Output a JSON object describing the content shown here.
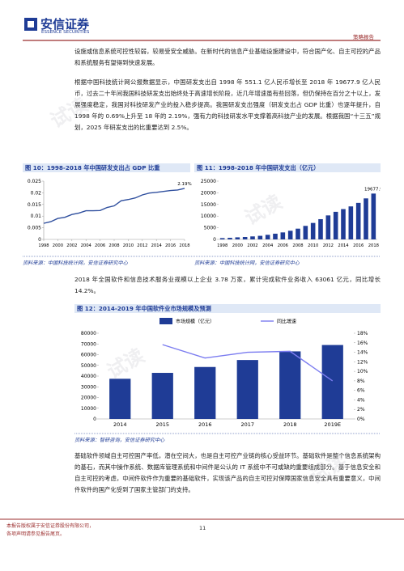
{
  "header": {
    "company": "安信证券",
    "company_en": "ESSENCE SECURITIES",
    "report_type": "策略报告"
  },
  "paragraphs": [
    "设施或信息系统可控性较弱，较易受安全威胁。在新时代的信息产业基础设施建设中，符合国产化、自主可控的产品和系统服务有望得到快速发展。",
    "根据中国科技统计网公报数据显示，中国研发支出自 1998 年 551.1 亿人民币增长至 2018 年 19677.9 亿人民币，过去二十年间我国科技研发支出始终处于高速增长阶段，近几年增速虽有些回落，但仍保持在百分之十以上，发展强度稳定，我国对科技研发产业的投入稳步提高。我国研发支出强度（研发支出占 GDP 比重）也逐年提升，自 1998 年的 0.69%上升至 18 年的 2.19%，强有力的科技研发水平支撑着高科技产业的发展。根据我国“十三五”规划，2025 年研发支出的比重要达到 2.5%。",
    "2018 年全国软件和信息技术服务业规模以上企业 3.78 万家，累计完成软件业务收入 63061 亿元，同比增长 14.2%。",
    "基础软件领域自主可控国产率低，潜在空间大，也是自主可控产业链的核心受益环节。基础软件是整个信息系统架构的基石，而其中操作系统、数据库管理系统和中间件是公认的 IT 系统中不可或缺的重要组成部分。基于信息安全和自主可控的考虑，中间件软件作为重要的基础软件，实现该产品的自主可控对保障国家信息安全具有重要意义，中间件软件的国产化受到了国家主管部门的支持。"
  ],
  "chart_data": [
    {
      "type": "line",
      "title": "图 10：1998-2018 年中国研发支出占 GDP 比重",
      "source": "资料来源：中国科技统计网，安信证券研究中心",
      "x": [
        1998,
        1999,
        2000,
        2001,
        2002,
        2003,
        2004,
        2005,
        2006,
        2007,
        2008,
        2009,
        2010,
        2011,
        2012,
        2013,
        2014,
        2015,
        2016,
        2017,
        2018
      ],
      "values": [
        0.0069,
        0.0076,
        0.009,
        0.0095,
        0.0107,
        0.0113,
        0.0123,
        0.0123,
        0.0124,
        0.0137,
        0.0144,
        0.0166,
        0.0171,
        0.0178,
        0.0191,
        0.0199,
        0.0202,
        0.0206,
        0.021,
        0.0212,
        0.0219
      ],
      "value_labels": [
        null,
        null,
        null,
        null,
        null,
        null,
        null,
        null,
        null,
        null,
        null,
        null,
        null,
        null,
        null,
        null,
        null,
        null,
        null,
        null,
        "2.19%"
      ],
      "color": "#2f4f9e",
      "xlim": [
        1998,
        2018
      ],
      "xticks": [
        1998,
        2000,
        2002,
        2004,
        2006,
        2008,
        2010,
        2012,
        2014,
        2016,
        2018
      ],
      "ylim": [
        0,
        0.025
      ],
      "yticks": [
        0,
        0.005,
        0.01,
        0.015,
        0.02,
        0.025
      ],
      "grid": false
    },
    {
      "type": "bar",
      "title": "图 11：1998-2018 年中国研发支出（亿元）",
      "source": "资料来源：中国科技统计网，安信证券研究中心",
      "categories": [
        "1998",
        null,
        "2000",
        null,
        "2002",
        null,
        "2004",
        null,
        "2006",
        null,
        "2008",
        null,
        "2010",
        null,
        "2012",
        null,
        "2014",
        null,
        "2016",
        null,
        "2018"
      ],
      "values": [
        551.1,
        678.9,
        895.7,
        1042.5,
        1287.6,
        1539.6,
        1966.3,
        2450,
        3003.1,
        3710.2,
        4616,
        5802.1,
        7062.6,
        8687,
        10298.4,
        11846.6,
        13015.6,
        14169.9,
        15676.7,
        17606.1,
        19677.9
      ],
      "value_labels": [
        null,
        null,
        null,
        null,
        null,
        null,
        null,
        null,
        null,
        null,
        null,
        null,
        null,
        null,
        null,
        null,
        null,
        null,
        null,
        null,
        "19677.9"
      ],
      "color": "#1f3c96",
      "ylim": [
        0,
        25000
      ],
      "yticks": [
        0,
        5000,
        10000,
        15000,
        20000,
        25000
      ],
      "grid": false
    },
    {
      "type": "combo",
      "title": "图 12：2014-2019 年中国软件业市场规模及预测",
      "source": "资料来源：智研咨询，安信证券研究中心",
      "categories": [
        "2014",
        "2015",
        "2016",
        "2017",
        "2018",
        "2019E"
      ],
      "series": [
        {
          "name": "市场规模（亿元）",
          "color": "#1f3c96",
          "values": [
            37500,
            43000,
            48500,
            55000,
            63061,
            69000
          ]
        },
        {
          "name": "同比增速",
          "color": "#7b7cf0",
          "axis": "y2",
          "values": [
            null,
            15.6,
            12.8,
            14,
            14.2,
            8
          ]
        }
      ],
      "ylim": [
        0,
        80000
      ],
      "yticks": [
        0,
        10000,
        20000,
        30000,
        40000,
        50000,
        60000,
        70000,
        80000
      ],
      "y2lim": [
        0,
        18
      ],
      "y2ticks": [
        {
          "value": 0,
          "label": "0%"
        },
        {
          "value": 2,
          "label": "2%"
        },
        {
          "value": 4,
          "label": "4%"
        },
        {
          "value": 6,
          "label": "6%"
        },
        {
          "value": 8,
          "label": "8%"
        },
        {
          "value": 10,
          "label": "10%"
        },
        {
          "value": 12,
          "label": "12%"
        },
        {
          "value": 14,
          "label": "14%"
        },
        {
          "value": 16,
          "label": "16%"
        },
        {
          "value": 18,
          "label": "18%"
        }
      ],
      "legend": "top",
      "grid": false
    }
  ],
  "watermark": "试读",
  "footer": {
    "lines": [
      "本报告版权属于安信证券股份有限公司，",
      "各项声明请参见报告尾页。"
    ],
    "page": "11"
  }
}
